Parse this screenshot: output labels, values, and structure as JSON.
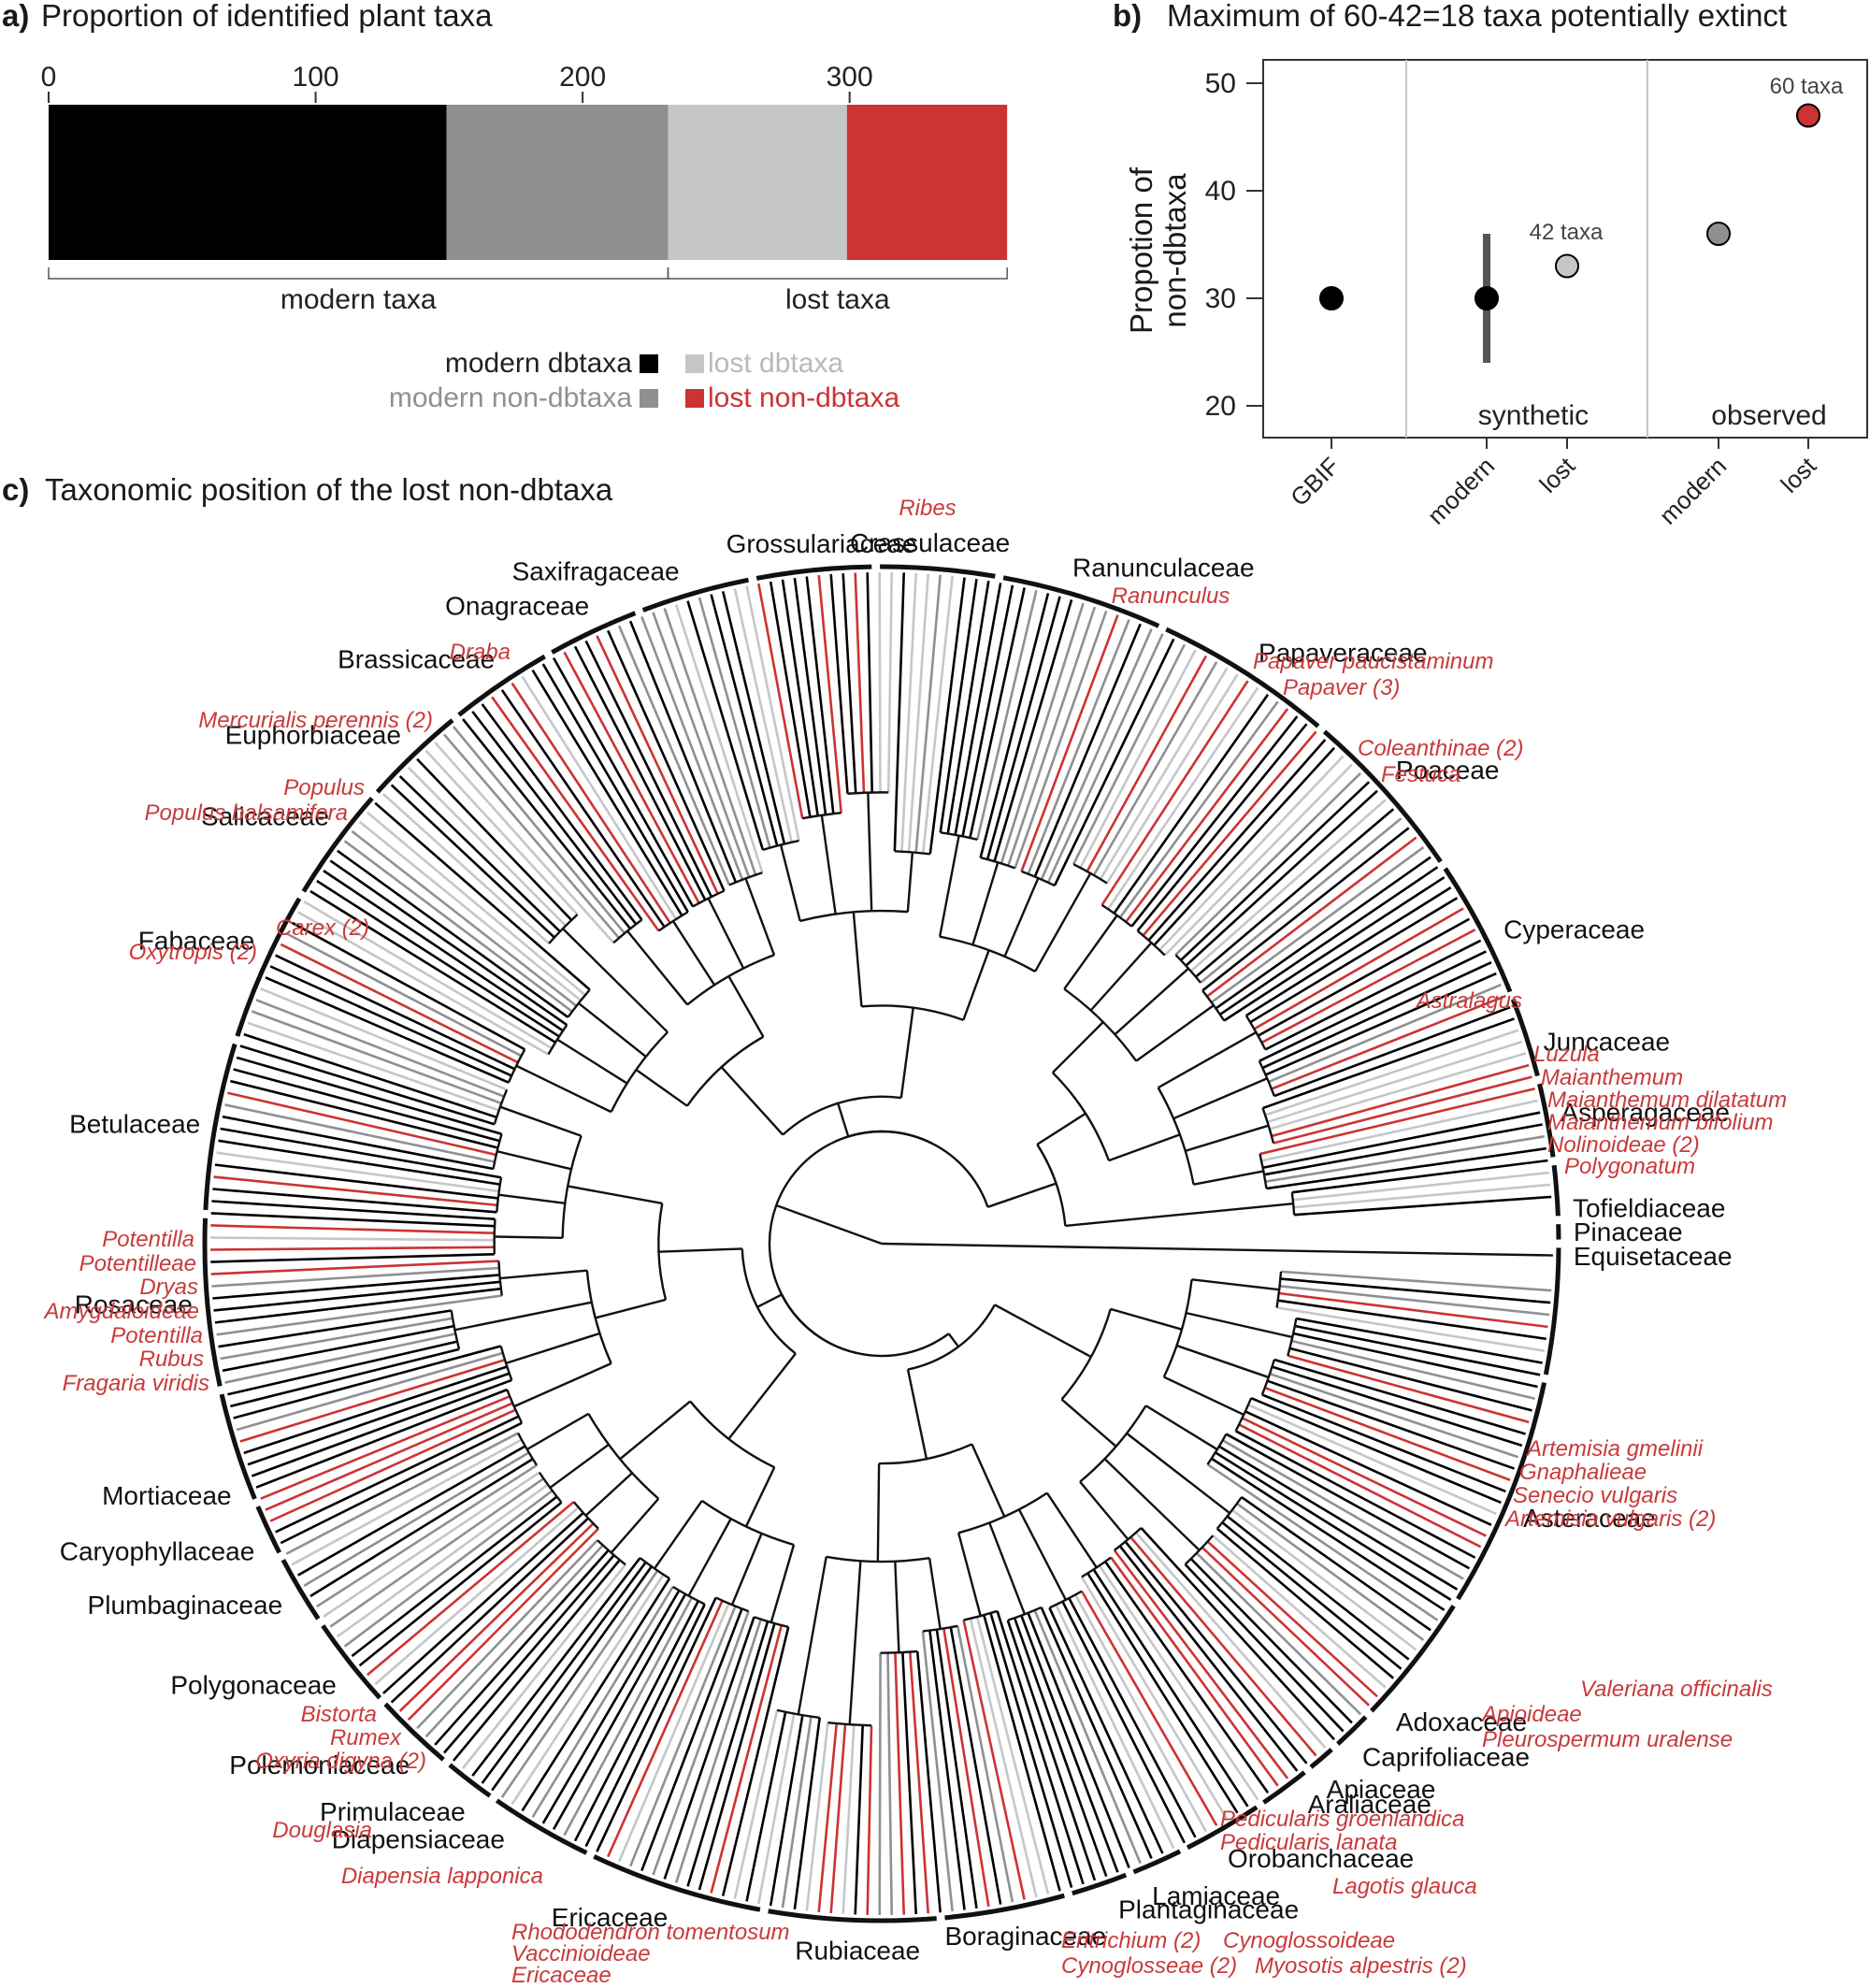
{
  "colors": {
    "modern_dbtaxa": "#000000",
    "modern_non_dbtaxa": "#8e9092",
    "lost_dbtaxa": "#c5c6c7",
    "lost_non_dbtaxa": "#cc3333",
    "axis": "#333333"
  },
  "panel_a": {
    "label": "a)",
    "title": "Proportion of identified plant taxa",
    "group_labels": {
      "modern": "modern taxa",
      "lost": "lost taxa"
    },
    "legend": [
      "modern dbtaxa",
      "modern non-dbtaxa",
      "lost dbtaxa",
      "lost non-dbtaxa"
    ]
  },
  "panel_b": {
    "label": "b)",
    "title": "Maximum of 60-42=18 taxa potentially extinct",
    "ylabel_line1": "Propotion of",
    "ylabel_line2": "non-dbtaxa",
    "group_labels": [
      "synthetic",
      "observed"
    ],
    "annotations": [
      "42 taxa",
      "60 taxa"
    ]
  },
  "panel_c": {
    "label": "c)",
    "title": "Taxonomic position of the lost non-dbtaxa",
    "families": [
      {
        "name": "Crassulaceae",
        "angle": 274
      },
      {
        "name": "Grossulariaceae",
        "angle": 265
      },
      {
        "name": "Ranunculaceae",
        "angle": 286
      },
      {
        "name": "Saxifragaceae",
        "angle": 253
      },
      {
        "name": "Onagraceae",
        "angle": 245
      },
      {
        "name": "Brassicaceae",
        "angle": 236
      },
      {
        "name": "Papaveraceae",
        "angle": 303
      },
      {
        "name": "Euphorbiaceae",
        "angle": 226
      },
      {
        "name": "Poaceae",
        "angle": 318
      },
      {
        "name": "Salicaceae",
        "angle": 217
      },
      {
        "name": "Cyperaceae",
        "angle": 334
      },
      {
        "name": "Fabaceae",
        "angle": 205
      },
      {
        "name": "Juncaceae",
        "angle": 343
      },
      {
        "name": "Asperagaceae",
        "angle": 349
      },
      {
        "name": "Betulaceae",
        "angle": 190
      },
      {
        "name": "Tofieldiaceae",
        "angle": 357
      },
      {
        "name": "Pinaceae",
        "angle": 359
      },
      {
        "name": "Equisetaceae",
        "angle": 1
      },
      {
        "name": "Rosaceae",
        "angle": 175
      },
      {
        "name": "Asteraceae",
        "angle": 22
      },
      {
        "name": "Mortiaceae",
        "angle": 160
      },
      {
        "name": "Caryophyllaceae",
        "angle": 155
      },
      {
        "name": "Plumbaginaceae",
        "angle": 150
      },
      {
        "name": "Adoxaceae",
        "angle": 42
      },
      {
        "name": "Caprifoliaceae",
        "angle": 46
      },
      {
        "name": "Polygonaceae",
        "angle": 142
      },
      {
        "name": "Apiaceae",
        "angle": 50
      },
      {
        "name": "Araliaceae",
        "angle": 52
      },
      {
        "name": "Polemoniaceae",
        "angle": 133
      },
      {
        "name": "Orobanchaceae",
        "angle": 60
      },
      {
        "name": "Primulaceae",
        "angle": 127
      },
      {
        "name": "Diapensiaceae",
        "angle": 123
      },
      {
        "name": "Lamiaceae",
        "angle": 67
      },
      {
        "name": "Plantaginaceae",
        "angle": 70
      },
      {
        "name": "Ericaceae",
        "angle": 108
      },
      {
        "name": "Boraginaceae",
        "angle": 78
      },
      {
        "name": "Rubiaceae",
        "angle": 92
      }
    ],
    "lost_taxa": [
      {
        "text": "Ribes",
        "anchor": "middle"
      },
      {
        "text": "Ranunculus",
        "anchor": "middle"
      },
      {
        "text": "Papaver paucistaminum",
        "anchor": "start"
      },
      {
        "text": "Papaver (3)",
        "anchor": "start"
      },
      {
        "text": "Draba",
        "anchor": "end"
      },
      {
        "text": "Mercurialis perennis (2)",
        "anchor": "end"
      },
      {
        "text": "Coleanthinae (2)",
        "anchor": "start"
      },
      {
        "text": "Festuca",
        "anchor": "start"
      },
      {
        "text": "Populus",
        "anchor": "end"
      },
      {
        "text": "Populus balsamifera",
        "anchor": "end"
      },
      {
        "text": "Carex (2)",
        "anchor": "start"
      },
      {
        "text": "Oxytropis (2)",
        "anchor": "end"
      },
      {
        "text": "Astralagus",
        "anchor": "end"
      },
      {
        "text": "Luzula",
        "anchor": "start"
      },
      {
        "text": "Maianthemum",
        "anchor": "start"
      },
      {
        "text": "Maianthemum dilatatum",
        "anchor": "start"
      },
      {
        "text": "Maianthemum bifolium",
        "anchor": "start"
      },
      {
        "text": "Nolinoideae (2)",
        "anchor": "start"
      },
      {
        "text": "Polygonatum",
        "anchor": "start"
      },
      {
        "text": "Potentilla",
        "anchor": "end"
      },
      {
        "text": "Potentilleae",
        "anchor": "end"
      },
      {
        "text": "Dryas",
        "anchor": "end"
      },
      {
        "text": "Amygdaloideae",
        "anchor": "end"
      },
      {
        "text": "Potentilla",
        "anchor": "end"
      },
      {
        "text": "Rubus",
        "anchor": "end"
      },
      {
        "text": "Fragaria viridis",
        "anchor": "end"
      },
      {
        "text": "Artemisia gmelinii",
        "anchor": "start"
      },
      {
        "text": "Gnaphalieae",
        "anchor": "start"
      },
      {
        "text": "Senecio vulgaris",
        "anchor": "start"
      },
      {
        "text": "Artemisia vulgaris (2)",
        "anchor": "start"
      },
      {
        "text": "Valeriana officinalis",
        "anchor": "start"
      },
      {
        "text": "Apioideae",
        "anchor": "start"
      },
      {
        "text": "Pleurospermum uralense",
        "anchor": "start"
      },
      {
        "text": "Bistorta",
        "anchor": "end"
      },
      {
        "text": "Rumex",
        "anchor": "end"
      },
      {
        "text": "Oxyria digyna (2)",
        "anchor": "end"
      },
      {
        "text": "Pedicularis groenlandica",
        "anchor": "start"
      },
      {
        "text": "Pedicularis lanata",
        "anchor": "start"
      },
      {
        "text": "Douglasia",
        "anchor": "end"
      },
      {
        "text": "Diapensia lapponica",
        "anchor": "end"
      },
      {
        "text": "Lagotis glauca",
        "anchor": "start"
      },
      {
        "text": "Rhododendron tomentosum",
        "anchor": "start"
      },
      {
        "text": "Vaccinioideae",
        "anchor": "start"
      },
      {
        "text": "Ericaceae",
        "anchor": "start"
      },
      {
        "text": "Eritrichium (2)",
        "anchor": "start"
      },
      {
        "text": "Cynoglossoideae",
        "anchor": "start"
      },
      {
        "text": "Cynoglosseae (2)",
        "anchor": "start"
      },
      {
        "text": "Myosotis alpestris (2)",
        "anchor": "start"
      }
    ]
  },
  "chart_data": [
    {
      "type": "bar",
      "panel": "a",
      "orientation": "horizontal-stacked",
      "title": "Proportion of identified plant taxa",
      "xlim": [
        0,
        360
      ],
      "xticks": [
        0,
        100,
        200,
        300
      ],
      "categories": [
        "modern dbtaxa",
        "modern non-dbtaxa",
        "lost dbtaxa",
        "lost non-dbtaxa"
      ],
      "values": [
        149,
        83,
        67,
        60
      ],
      "legend_position": "bottom-right"
    },
    {
      "type": "scatter",
      "panel": "b",
      "title": "Maximum of 60-42=18 taxa potentially extinct",
      "ylabel": "Propotion of non-dbtaxa",
      "ylim": [
        17,
        53
      ],
      "yticks": [
        20,
        30,
        40,
        50
      ],
      "x": [
        "GBIF",
        "modern",
        "lost",
        "modern",
        "lost"
      ],
      "points": [
        {
          "x": "GBIF",
          "group": "",
          "y": 30,
          "color": "#000000"
        },
        {
          "x": "modern",
          "group": "synthetic",
          "y": 30,
          "yerr": [
            24,
            36
          ],
          "color": "#000000"
        },
        {
          "x": "lost",
          "group": "synthetic",
          "y": 33,
          "yerr": [
            32.5,
            34
          ],
          "color": "#c5c6c7",
          "label": "42 taxa"
        },
        {
          "x": "modern",
          "group": "observed",
          "y": 36,
          "color": "#8e9092"
        },
        {
          "x": "lost",
          "group": "observed",
          "y": 47,
          "color": "#cc3333",
          "label": "60 taxa"
        }
      ],
      "grid": false
    }
  ]
}
